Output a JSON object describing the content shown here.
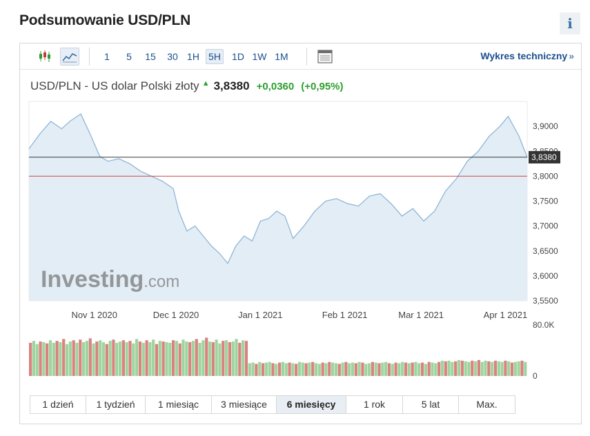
{
  "header": {
    "title": "Podsumowanie USD/PLN",
    "info_label": "i"
  },
  "toolbar": {
    "timeframes": [
      "1",
      "5",
      "15",
      "30",
      "1H",
      "5H",
      "1D",
      "1W",
      "1M"
    ],
    "active_timeframe": "5H",
    "technical_link": "Wykres techniczny",
    "technical_chevron": "»"
  },
  "quote": {
    "pair_label": "USD/PLN - US dolar Polski złoty",
    "price": "3,8380",
    "change": "+0,0360",
    "change_pct": "(+0,95%)",
    "direction": "up"
  },
  "chart_data": {
    "type": "area",
    "title": "",
    "watermark": "Investing.com",
    "x_ticks": [
      "Nov 1 2020",
      "Dec 1 2020",
      "Jan 1 2021",
      "Feb 1 2021",
      "Mar 1 2021",
      "Apr 1 2021"
    ],
    "y_ticks": [
      "3,9000",
      "3,8500",
      "3,8000",
      "3,7500",
      "3,7000",
      "3,6500",
      "3,6000",
      "3,5500"
    ],
    "ylim": [
      3.55,
      3.95
    ],
    "current_value": 3.838,
    "current_label": "3,8380",
    "reference_line": 3.8,
    "line_color": "#8fb5d6",
    "fill_color": "#e3edf6",
    "series": [
      {
        "x": [
          "2020-10-08",
          "2020-10-12",
          "2020-10-16",
          "2020-10-20",
          "2020-10-23",
          "2020-10-27",
          "2020-10-30",
          "2020-11-03",
          "2020-11-06",
          "2020-11-10",
          "2020-11-14",
          "2020-11-18",
          "2020-11-22",
          "2020-11-26",
          "2020-11-30",
          "2020-12-02",
          "2020-12-05",
          "2020-12-08",
          "2020-12-11",
          "2020-12-14",
          "2020-12-17",
          "2020-12-20",
          "2020-12-23",
          "2020-12-26",
          "2020-12-29",
          "2021-01-01",
          "2021-01-04",
          "2021-01-07",
          "2021-01-10",
          "2021-01-13",
          "2021-01-17",
          "2021-01-21",
          "2021-01-25",
          "2021-01-29",
          "2021-02-02",
          "2021-02-06",
          "2021-02-10",
          "2021-02-14",
          "2021-02-18",
          "2021-02-22",
          "2021-02-26",
          "2021-03-02",
          "2021-03-06",
          "2021-03-10",
          "2021-03-14",
          "2021-03-18",
          "2021-03-22",
          "2021-03-26",
          "2021-03-30",
          "2021-04-02",
          "2021-04-06",
          "2021-04-09"
        ],
        "values": [
          3.855,
          3.885,
          3.91,
          3.895,
          3.91,
          3.925,
          3.89,
          3.84,
          3.83,
          3.835,
          3.825,
          3.81,
          3.8,
          3.79,
          3.775,
          3.73,
          3.69,
          3.7,
          3.68,
          3.66,
          3.645,
          3.625,
          3.66,
          3.68,
          3.67,
          3.71,
          3.715,
          3.73,
          3.72,
          3.675,
          3.7,
          3.73,
          3.75,
          3.755,
          3.745,
          3.74,
          3.76,
          3.765,
          3.745,
          3.72,
          3.735,
          3.71,
          3.73,
          3.77,
          3.795,
          3.83,
          3.85,
          3.88,
          3.9,
          3.92,
          3.88,
          3.838
        ]
      }
    ],
    "volume": {
      "ticks": [
        "80.0K",
        "0"
      ],
      "max": 80000,
      "up_color": "#9fd49f",
      "down_color": "#d9827e",
      "values": [
        52,
        55,
        50,
        54,
        53,
        51,
        56,
        52,
        55,
        53,
        58,
        50,
        54,
        56,
        52,
        57,
        53,
        55,
        59,
        51,
        54,
        56,
        53,
        50,
        55,
        57,
        52,
        54,
        56,
        53,
        55,
        51,
        58,
        54,
        52,
        56,
        53,
        57,
        50,
        55,
        54,
        53,
        52,
        56,
        55,
        51,
        57,
        54,
        53,
        55,
        58,
        52,
        56,
        60,
        54,
        53,
        57,
        51,
        55,
        56,
        53,
        54,
        58,
        52,
        56,
        55,
        20,
        21,
        19,
        22,
        20,
        21,
        22,
        20,
        19,
        21,
        22,
        20,
        21,
        20,
        19,
        22,
        21,
        20,
        21,
        22,
        20,
        19,
        21,
        20,
        22,
        21,
        20,
        19,
        21,
        22,
        20,
        21,
        20,
        22,
        21,
        19,
        20,
        22,
        21,
        20,
        21,
        22,
        20,
        19,
        21,
        20,
        22,
        21,
        20,
        21,
        22,
        20,
        21,
        19,
        22,
        21,
        20,
        22,
        24,
        23,
        24,
        22,
        23,
        25,
        24,
        23,
        22,
        24,
        23,
        25,
        22,
        24,
        23,
        22,
        24,
        23,
        22,
        24,
        23,
        21,
        22,
        23,
        24,
        22
      ]
    }
  },
  "periods": [
    "1 dzień",
    "1 tydzień",
    "1 miesiąc",
    "3 miesiące",
    "6 miesięcy",
    "1 rok",
    "5 lat",
    "Max."
  ],
  "active_period": "6 miesięcy"
}
